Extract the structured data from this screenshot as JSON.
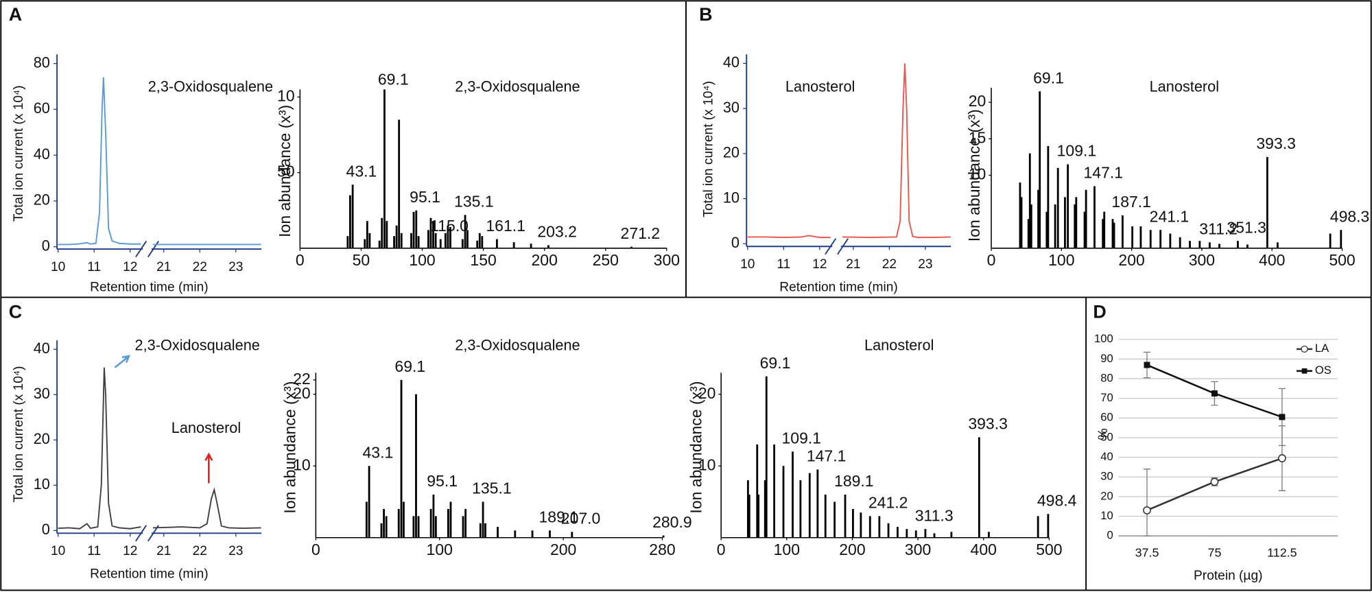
{
  "chart_data": [
    {
      "type": "line",
      "panel": "A",
      "y_label": "Total ion current (x 10⁴)",
      "x_label": "Retention time (min)",
      "color": "#5b9bd5",
      "annotations": [
        {
          "text": "2,3-Oxidosqualene",
          "color": "#5b9bd5"
        }
      ],
      "xlim": [
        [
          9.97,
          12.35
        ],
        [
          20.66,
          23.71
        ]
      ],
      "xticks": [
        10,
        11,
        12,
        21,
        22,
        23
      ],
      "ylim": [
        -1,
        84
      ],
      "yticks": [
        0,
        20,
        40,
        60,
        80
      ],
      "x": [
        10,
        10.3,
        10.6,
        10.8,
        10.9,
        11.05,
        11.15,
        11.22,
        11.26,
        11.32,
        11.4,
        11.5,
        11.7,
        12.0,
        12.3,
        null,
        20.7,
        21.5,
        22.3,
        23.0,
        23.7
      ],
      "values": [
        1,
        1,
        1.3,
        1.8,
        1.2,
        1.5,
        15,
        60,
        74,
        50,
        8,
        2.5,
        1.5,
        1.2,
        1.2,
        null,
        1,
        1,
        1,
        1,
        1
      ]
    },
    {
      "type": "bar",
      "y_label": "Ion abundance (x³)",
      "color": "#000000",
      "annotations": [
        {
          "text": "2,3-Oxidosqualene",
          "color": "#5b9bd5"
        }
      ],
      "xlim": [
        0,
        300
      ],
      "xticks": [
        0,
        50,
        100,
        150,
        200,
        250,
        300
      ],
      "ylim": [
        0,
        105
      ],
      "yticks": [
        50,
        {
          "value": 100,
          "label": "10"
        }
      ],
      "x": [
        39,
        41,
        43.1,
        53,
        55,
        57,
        65,
        67,
        69.1,
        71,
        77,
        79,
        81,
        83,
        91,
        93,
        95.1,
        97,
        105,
        107,
        109,
        111,
        115,
        119,
        121,
        123,
        133,
        135.1,
        137,
        145,
        147,
        149,
        161.1,
        175,
        189,
        203.2,
        271.2
      ],
      "values": [
        8,
        35,
        42,
        6,
        18,
        10,
        5,
        20,
        105,
        18,
        8,
        15,
        85,
        10,
        10,
        24,
        25,
        8,
        12,
        20,
        18,
        10,
        6,
        10,
        15,
        14,
        6,
        22,
        12,
        5,
        10,
        8,
        6,
        4,
        3,
        2,
        1
      ],
      "peak_labels": [
        null,
        null,
        "43.1",
        null,
        null,
        null,
        null,
        null,
        "69.1",
        null,
        null,
        null,
        null,
        null,
        null,
        null,
        "95.1",
        null,
        null,
        null,
        null,
        null,
        "115.0",
        null,
        null,
        null,
        null,
        "135.1",
        null,
        null,
        null,
        null,
        "161.1",
        null,
        null,
        "203.2",
        "271.2"
      ]
    },
    {
      "type": "line",
      "panel": "B",
      "y_label": "Total ion current (x 10⁴)",
      "x_label": "Retention time (min)",
      "color": "#e8584f",
      "annotations": [
        {
          "text": "Lanosterol",
          "color": "#e02020"
        }
      ],
      "xlim": [
        [
          9.97,
          12.35
        ],
        [
          20.66,
          23.71
        ]
      ],
      "xticks": [
        10,
        11,
        12,
        21,
        22,
        23
      ],
      "ylim": [
        -0.6,
        42
      ],
      "yticks": [
        0,
        10,
        20,
        30,
        40
      ],
      "x": [
        10,
        10.5,
        11,
        11.5,
        11.7,
        12,
        12.3,
        null,
        20.7,
        21.5,
        22.2,
        22.3,
        22.38,
        22.43,
        22.48,
        22.55,
        22.65,
        22.8,
        23.2,
        23.7
      ],
      "values": [
        1.5,
        1.5,
        1.4,
        1.5,
        1.8,
        1.4,
        1.4,
        null,
        1.5,
        1.4,
        1.5,
        5,
        30,
        40,
        30,
        5,
        1.6,
        1.4,
        1.4,
        1.5
      ]
    },
    {
      "type": "bar",
      "y_label": "Ion abundance (x³)",
      "color": "#000000",
      "annotations": [
        {
          "text": "Lanosterol",
          "color": "#e02020"
        }
      ],
      "xlim": [
        0,
        500
      ],
      "xticks": [
        0,
        100,
        200,
        300,
        400,
        500
      ],
      "ylim": [
        0,
        22
      ],
      "yticks": [
        10,
        15,
        20
      ],
      "x": [
        41,
        43,
        53,
        55,
        57,
        67,
        69.1,
        79,
        81,
        91,
        95,
        105,
        109.1,
        119,
        121,
        133,
        135,
        147.1,
        159,
        161,
        173,
        175,
        187.1,
        201,
        213,
        227,
        241.1,
        255,
        269,
        283,
        297,
        311.2,
        325,
        351.3,
        365,
        393.3,
        408,
        483,
        498.3
      ],
      "values": [
        9,
        7,
        4,
        13,
        6,
        8,
        21.5,
        5,
        14,
        6,
        11,
        7,
        11.5,
        6,
        7,
        5,
        8,
        8.5,
        4,
        5,
        4,
        3.5,
        4.5,
        3,
        3,
        2.5,
        2.5,
        2,
        1.5,
        1,
        1,
        0.8,
        0.6,
        1,
        0.5,
        12.5,
        0.8,
        2,
        2.5
      ],
      "peak_labels": [
        null,
        null,
        null,
        null,
        null,
        null,
        "69.1",
        null,
        null,
        null,
        null,
        null,
        "109.1",
        null,
        null,
        null,
        null,
        "147.1",
        null,
        null,
        null,
        null,
        "187.1",
        null,
        null,
        null,
        "241.1",
        null,
        null,
        null,
        null,
        "311.2",
        null,
        "351.3",
        null,
        "393.3",
        null,
        null,
        "498.3"
      ]
    },
    {
      "type": "line",
      "panel": "C",
      "y_label": "Total ion current (x 10⁴)",
      "x_label": "Retention time (min)",
      "color": "#404040",
      "annotations": [
        {
          "text": "2,3-Oxidosqualene",
          "color": "#5b9bd5"
        },
        {
          "text": "Lanosterol",
          "color": "#e02020"
        }
      ],
      "xlim": [
        [
          9.97,
          12.35
        ],
        [
          20.66,
          23.71
        ]
      ],
      "xticks": [
        10,
        11,
        12,
        21,
        22,
        23
      ],
      "ylim": [
        -0.6,
        42
      ],
      "yticks": [
        0,
        10,
        20,
        30,
        40
      ],
      "x": [
        10,
        10.3,
        10.6,
        10.8,
        10.9,
        11.1,
        11.2,
        11.28,
        11.32,
        11.4,
        11.5,
        11.7,
        12.0,
        12.3,
        null,
        20.7,
        21.5,
        22.0,
        22.2,
        22.32,
        22.4,
        22.48,
        22.6,
        22.8,
        23.2,
        23.7
      ],
      "values": [
        0.5,
        0.6,
        0.4,
        1.5,
        0.5,
        0.8,
        10,
        36,
        30,
        6,
        1,
        0.6,
        0.4,
        0.8,
        null,
        0.6,
        0.8,
        0.6,
        1.5,
        7,
        9,
        6,
        1,
        0.6,
        0.5,
        0.6
      ]
    },
    {
      "type": "bar",
      "y_label": "Ion abundance (x³)",
      "color": "#000000",
      "annotations": [
        {
          "text": "2,3-Oxidosqualene",
          "color": "#5b9bd5"
        }
      ],
      "xlim": [
        0,
        280
      ],
      "xticks": [
        0,
        100,
        200,
        280
      ],
      "ylim": [
        0,
        23
      ],
      "yticks": [
        10,
        20,
        22
      ],
      "x": [
        41,
        43.1,
        53,
        55,
        57,
        67,
        69.1,
        71,
        79,
        81,
        83,
        93,
        95.1,
        97,
        107,
        109,
        119,
        121,
        133,
        135.1,
        137,
        147,
        161,
        175,
        189.1,
        207,
        280.9
      ],
      "values": [
        5,
        10,
        2,
        4,
        3,
        4,
        22,
        5,
        3,
        20,
        3,
        4,
        6,
        3,
        4,
        5,
        3,
        4,
        2,
        5,
        2,
        1.5,
        1,
        1,
        1,
        0.8,
        0.3
      ],
      "peak_labels": [
        null,
        "43.1",
        null,
        null,
        null,
        null,
        "69.1",
        null,
        null,
        null,
        null,
        null,
        "95.1",
        null,
        null,
        null,
        null,
        null,
        null,
        "135.1",
        null,
        null,
        null,
        null,
        "189.1",
        "207.0",
        "280.9"
      ]
    },
    {
      "type": "bar",
      "y_label": "Ion abundance (x³)",
      "color": "#000000",
      "annotations": [
        {
          "text": "Lanosterol",
          "color": "#e02020"
        }
      ],
      "xlim": [
        0,
        500
      ],
      "xticks": [
        0,
        100,
        200,
        300,
        400,
        500
      ],
      "ylim": [
        0,
        23
      ],
      "yticks": [
        10,
        20
      ],
      "x": [
        41,
        43,
        55,
        57,
        67,
        69.1,
        81,
        95,
        109.1,
        121,
        135,
        147.1,
        159,
        173,
        189.1,
        201,
        213,
        227,
        241.2,
        255,
        269,
        283,
        297,
        311.3,
        325,
        351,
        393.3,
        408,
        483,
        498.4
      ],
      "values": [
        8,
        6,
        13,
        6,
        8,
        22.5,
        13,
        10,
        12,
        8,
        9,
        9.5,
        6,
        5,
        6,
        4,
        3.5,
        3,
        3,
        2,
        1.5,
        1.2,
        1,
        1.2,
        0.6,
        0.8,
        14,
        0.8,
        3,
        3.3
      ],
      "peak_labels": [
        null,
        null,
        null,
        null,
        null,
        "69.1",
        null,
        null,
        "109.1",
        null,
        null,
        "147.1",
        null,
        null,
        "189.1",
        null,
        null,
        null,
        "241.2",
        null,
        null,
        null,
        null,
        "311.3",
        null,
        null,
        "393.3",
        null,
        null,
        "498.4"
      ]
    },
    {
      "type": "errorline",
      "panel": "D",
      "y_label": "%",
      "x_label": "Protein (µg)",
      "grid": true,
      "legend": "top-right",
      "categories": [
        "37.5",
        "75",
        "112.5"
      ],
      "ylim": [
        0,
        100
      ],
      "yticks": [
        0,
        10,
        20,
        30,
        40,
        50,
        60,
        70,
        80,
        90,
        100
      ],
      "series": [
        {
          "name": "LA",
          "color": "#333333",
          "marker": "circle",
          "values": [
            13,
            27.5,
            39.5
          ],
          "errors": [
            21,
            2,
            16.5
          ]
        },
        {
          "name": "OS",
          "color": "#111111",
          "marker": "square",
          "values": [
            87,
            72.5,
            60.5
          ],
          "errors": [
            6.5,
            6,
            14.5
          ]
        }
      ]
    }
  ]
}
